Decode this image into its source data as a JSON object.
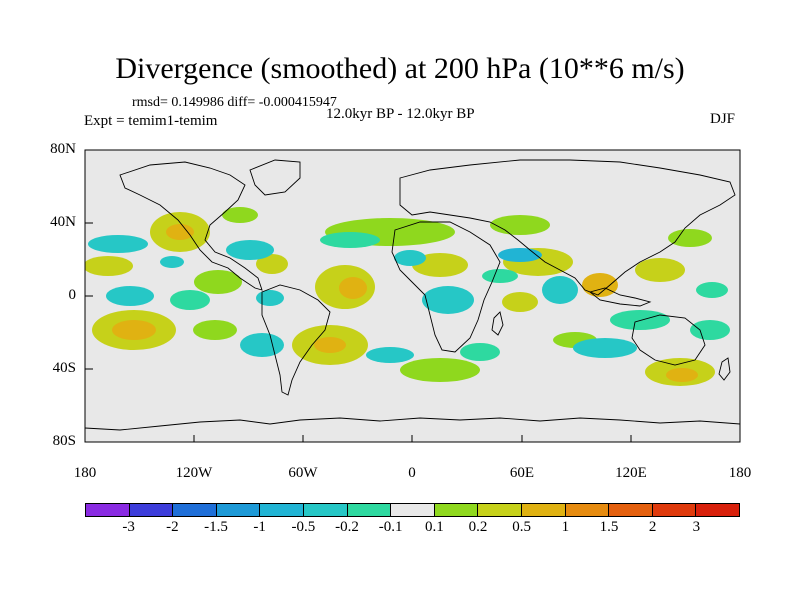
{
  "title": "Divergence (smoothed) at 200 hPa (10**6 m/s)",
  "stats_line": "rmsd= 0.149986 diff= -0.000415947",
  "experiment": "Expt = temim1-temim",
  "period": "12.0kyr BP - 12.0kyr BP",
  "season": "DJF",
  "lat_labels": [
    "80N",
    "40N",
    "0",
    "40S",
    "80S"
  ],
  "lon_labels": [
    "180",
    "120W",
    "60W",
    "0",
    "60E",
    "120E",
    "180"
  ],
  "colorbar": {
    "labels": [
      "-3",
      "-2",
      "-1.5",
      "-1",
      "-0.5",
      "-0.2",
      "-0.1",
      "0.1",
      "0.2",
      "0.5",
      "1",
      "1.5",
      "2",
      "3"
    ],
    "colors": [
      "#8a2be2",
      "#3d3ddb",
      "#1f6fd8",
      "#1e9ad7",
      "#21b4d4",
      "#26c7c6",
      "#2ed9a0",
      "#e8e8e8",
      "#8fd81e",
      "#c6d11a",
      "#e0b212",
      "#e68b10",
      "#e4600e",
      "#df3a0c",
      "#d8200b"
    ]
  }
}
